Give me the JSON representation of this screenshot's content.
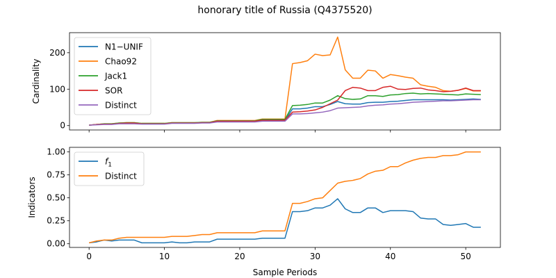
{
  "figure_title": "honorary title of Russia (Q4375520)",
  "colors": {
    "blue": "#1f77b4",
    "orange": "#ff7f0e",
    "green": "#2ca02c",
    "red": "#d62728",
    "purple": "#9467bd"
  },
  "chart_data": [
    {
      "type": "line",
      "title": "",
      "xlabel": "",
      "ylabel": "Cardinality",
      "xlim": [
        -2.6,
        54.6
      ],
      "ylim": [
        -12,
        255
      ],
      "xticks": [
        0,
        10,
        20,
        30,
        40,
        50
      ],
      "xtick_labels": [
        "",
        "",
        "",
        "",
        "",
        ""
      ],
      "yticks": [
        0,
        100,
        200
      ],
      "ytick_labels": [
        "0",
        "100",
        "200"
      ],
      "legend_position": "upper-left",
      "x": [
        0,
        1,
        2,
        3,
        4,
        5,
        6,
        7,
        8,
        9,
        10,
        11,
        12,
        13,
        14,
        15,
        16,
        17,
        18,
        19,
        20,
        21,
        22,
        23,
        24,
        25,
        26,
        27,
        28,
        29,
        30,
        31,
        32,
        33,
        34,
        35,
        36,
        37,
        38,
        39,
        40,
        41,
        42,
        43,
        44,
        45,
        46,
        47,
        48,
        49,
        50,
        51,
        52
      ],
      "series": [
        {
          "name": "N1−UNIF",
          "color": "#1f77b4",
          "values": [
            1,
            3,
            4,
            4,
            6,
            6,
            6,
            5,
            5,
            5,
            5,
            7,
            7,
            7,
            7,
            8,
            8,
            11,
            11,
            11,
            11,
            11,
            11,
            14,
            14,
            14,
            14,
            46,
            46,
            48,
            52,
            52,
            58,
            66,
            60,
            59,
            59,
            63,
            64,
            64,
            66,
            67,
            69,
            71,
            71,
            71,
            71,
            71,
            70,
            71,
            72,
            73,
            72
          ]
        },
        {
          "name": "Chao92",
          "color": "#ff7f0e",
          "values": [
            1,
            3,
            5,
            5,
            7,
            8,
            8,
            6,
            6,
            6,
            6,
            8,
            8,
            8,
            8,
            9,
            9,
            14,
            14,
            14,
            14,
            14,
            14,
            18,
            18,
            18,
            18,
            170,
            173,
            178,
            196,
            192,
            194,
            243,
            153,
            130,
            130,
            152,
            150,
            130,
            140,
            137,
            133,
            130,
            112,
            108,
            105,
            96,
            94,
            97,
            102,
            95,
            95
          ]
        },
        {
          "name": "Jack1",
          "color": "#2ca02c",
          "values": [
            1,
            3,
            5,
            5,
            7,
            8,
            8,
            6,
            6,
            6,
            6,
            8,
            8,
            8,
            8,
            9,
            9,
            13,
            13,
            13,
            13,
            13,
            13,
            17,
            17,
            17,
            17,
            55,
            56,
            58,
            62,
            62,
            70,
            82,
            74,
            72,
            73,
            82,
            82,
            80,
            84,
            85,
            88,
            89,
            87,
            88,
            87,
            86,
            85,
            84,
            87,
            86,
            85
          ]
        },
        {
          "name": "SOR",
          "color": "#d62728",
          "values": [
            1,
            3,
            4,
            4,
            6,
            7,
            7,
            5,
            5,
            5,
            5,
            7,
            7,
            7,
            7,
            8,
            8,
            12,
            12,
            12,
            12,
            12,
            12,
            15,
            15,
            15,
            15,
            37,
            38,
            40,
            43,
            50,
            60,
            70,
            96,
            105,
            103,
            96,
            96,
            105,
            108,
            100,
            99,
            102,
            103,
            98,
            96,
            93,
            94,
            97,
            103,
            96,
            96
          ]
        },
        {
          "name": "Distinct",
          "color": "#9467bd",
          "values": [
            1,
            2,
            3,
            3,
            5,
            5,
            5,
            4,
            4,
            4,
            4,
            6,
            6,
            6,
            6,
            7,
            7,
            10,
            10,
            10,
            10,
            10,
            10,
            12,
            12,
            12,
            12,
            32,
            32,
            33,
            35,
            37,
            41,
            48,
            49,
            50,
            51,
            54,
            56,
            57,
            59,
            60,
            62,
            64,
            65,
            66,
            67,
            68,
            68,
            69,
            70,
            71,
            71
          ]
        }
      ]
    },
    {
      "type": "line",
      "title": "",
      "xlabel": "Sample Periods",
      "ylabel": "Indicators",
      "xlim": [
        -2.6,
        54.6
      ],
      "ylim": [
        -0.04,
        1.05
      ],
      "xticks": [
        0,
        10,
        20,
        30,
        40,
        50
      ],
      "xtick_labels": [
        "0",
        "10",
        "20",
        "30",
        "40",
        "50"
      ],
      "yticks": [
        0,
        0.25,
        0.5,
        0.75,
        1.0
      ],
      "ytick_labels": [
        "0.00",
        "0.25",
        "0.50",
        "0.75",
        "1.00"
      ],
      "legend_position": "upper-left",
      "x": [
        0,
        1,
        2,
        3,
        4,
        5,
        6,
        7,
        8,
        9,
        10,
        11,
        12,
        13,
        14,
        15,
        16,
        17,
        18,
        19,
        20,
        21,
        22,
        23,
        24,
        25,
        26,
        27,
        28,
        29,
        30,
        31,
        32,
        33,
        34,
        35,
        36,
        37,
        38,
        39,
        40,
        41,
        42,
        43,
        44,
        45,
        46,
        47,
        48,
        49,
        50,
        51,
        52
      ],
      "series": [
        {
          "name": "f",
          "subscript": "1",
          "color": "#1f77b4",
          "values": [
            0.01,
            0.02,
            0.04,
            0.03,
            0.04,
            0.04,
            0.04,
            0.01,
            0.01,
            0.01,
            0.01,
            0.02,
            0.01,
            0.01,
            0.02,
            0.02,
            0.02,
            0.05,
            0.05,
            0.05,
            0.05,
            0.05,
            0.05,
            0.06,
            0.06,
            0.06,
            0.06,
            0.35,
            0.35,
            0.36,
            0.39,
            0.39,
            0.42,
            0.49,
            0.38,
            0.34,
            0.34,
            0.39,
            0.39,
            0.34,
            0.36,
            0.36,
            0.36,
            0.35,
            0.28,
            0.27,
            0.27,
            0.21,
            0.2,
            0.21,
            0.22,
            0.18,
            0.18
          ]
        },
        {
          "name": "Distinct",
          "color": "#ff7f0e",
          "values": [
            0.01,
            0.03,
            0.04,
            0.04,
            0.06,
            0.07,
            0.07,
            0.07,
            0.07,
            0.07,
            0.07,
            0.08,
            0.08,
            0.08,
            0.09,
            0.1,
            0.1,
            0.12,
            0.12,
            0.12,
            0.12,
            0.12,
            0.12,
            0.14,
            0.14,
            0.14,
            0.14,
            0.44,
            0.44,
            0.46,
            0.49,
            0.5,
            0.58,
            0.66,
            0.68,
            0.69,
            0.71,
            0.76,
            0.79,
            0.8,
            0.84,
            0.84,
            0.88,
            0.91,
            0.93,
            0.94,
            0.94,
            0.96,
            0.96,
            0.97,
            1.0,
            1.0,
            1.0
          ]
        }
      ]
    }
  ]
}
